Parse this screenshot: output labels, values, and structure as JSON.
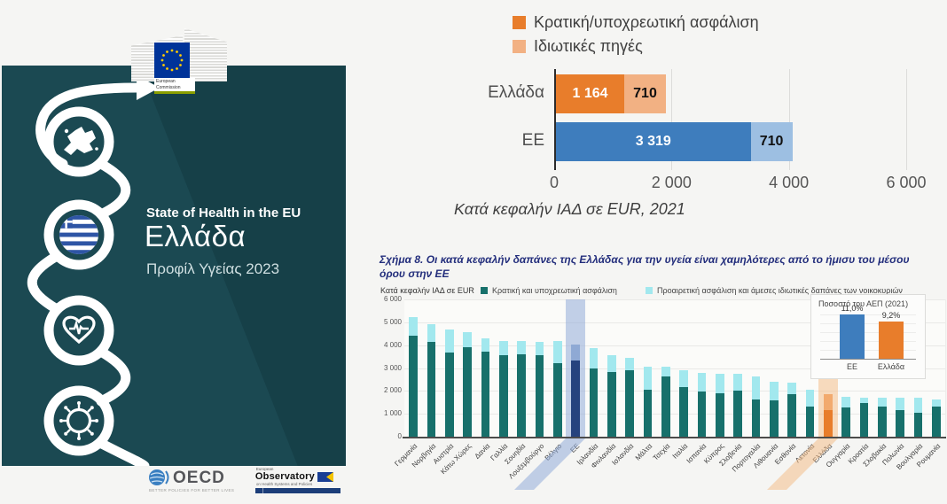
{
  "page": {
    "background": "#f5f5f3"
  },
  "cover": {
    "ec_logo": {
      "line1": "European",
      "line2": "Commission"
    },
    "series_title": "State of Health in the EU",
    "country": "Ελλάδα",
    "edition": "Προφίλ Υγείας 2023",
    "icon_names": [
      "europe-map-icon",
      "greek-flag-icon",
      "heart-pulse-icon",
      "virus-icon"
    ],
    "colors": {
      "card_bg": "#1b4952",
      "artwork": "#ffffff"
    },
    "footer": {
      "oecd_name": "OECD",
      "oecd_tagline": "BETTER POLICIES FOR BETTER LIVES",
      "observatory_top": "European",
      "observatory_name": "Observatory",
      "observatory_sub": "on Health Systems and Policies"
    }
  },
  "chart_data": [
    {
      "id": "headline-per-capita",
      "type": "bar",
      "orientation": "horizontal",
      "stacked": true,
      "legend": [
        {
          "label": "Κρατική/υποχρεωτική ασφάλιση",
          "color": "#e87d2b"
        },
        {
          "label": "Ιδιωτικές πηγές",
          "color": "#f2b183"
        }
      ],
      "categories": [
        "Ελλάδα",
        "ΕΕ"
      ],
      "series": [
        {
          "name": "Κρατική/υποχρεωτική ασφάλιση",
          "values": [
            1164,
            3319
          ]
        },
        {
          "name": "Ιδιωτικές πηγές",
          "values": [
            710,
            710
          ]
        }
      ],
      "bar_labels": [
        [
          "1 164",
          "710"
        ],
        [
          "3 319",
          "710"
        ]
      ],
      "bar_colors": [
        [
          "#e87d2b",
          "#f2b183"
        ],
        [
          "#3e7dbd",
          "#9dbfe2"
        ]
      ],
      "xlim": [
        0,
        6000
      ],
      "x_ticks": [
        {
          "value": 0,
          "label": "0"
        },
        {
          "value": 2000,
          "label": "2 000"
        },
        {
          "value": 4000,
          "label": "4 000"
        },
        {
          "value": 6000,
          "label": "6 000"
        }
      ],
      "caption": "Κατά κεφαλήν ΙΑΔ σε EUR, 2021",
      "grid": "vertical"
    },
    {
      "id": "figure-8",
      "type": "bar",
      "stacked": true,
      "title": "Σχήμα 8. Οι κατά κεφαλήν δαπάνες της Ελλάδας για την υγεία είναι χαμηλότερες από το ήμισυ του μέσου όρου στην ΕΕ",
      "unit_label": "Κατά κεφαλήν ΙΑΔ σε EUR",
      "legend": [
        {
          "label": "Κρατική και υποχρεωτική ασφάλιση",
          "color": "#17706b"
        },
        {
          "label": "Προαιρετική ασφάλιση και άμεσες ιδιωτικές δαπάνες των νοικοκυριών",
          "color": "#a2e8ee"
        }
      ],
      "ylim": [
        0,
        6000
      ],
      "y_ticks": [
        "0",
        "1 000",
        "2 000",
        "3 000",
        "4 000",
        "5 000",
        "6 000"
      ],
      "grid": "horizontal",
      "categories": [
        "Γερμανία",
        "Νορβηγία",
        "Αυστρία",
        "Κάτω Χώρες",
        "Δανία",
        "Γαλλία",
        "Σουηδία",
        "Λουξεμβούργο",
        "Βέλγιο",
        "ΕΕ",
        "Ιρλανδία",
        "Φινλανδία",
        "Ισλανδία",
        "Μάλτα",
        "Τσεχία",
        "Ιταλία",
        "Ισπανία",
        "Κύπρος",
        "Σλοβενία",
        "Πορτογαλία",
        "Λιθουανία",
        "Εσθονία",
        "Λετονία",
        "Ελλάδα",
        "Ουγγαρία",
        "Κροατία",
        "Σλοβακία",
        "Πολωνία",
        "Βουλγαρία",
        "Ρουμανία"
      ],
      "series": [
        {
          "name": "Κρατική και υποχρεωτική ασφάλιση",
          "values": [
            4430,
            4150,
            3660,
            3910,
            3710,
            3560,
            3610,
            3580,
            3220,
            3319,
            2990,
            2830,
            2900,
            2050,
            2650,
            2180,
            1980,
            1900,
            2010,
            1640,
            1590,
            1850,
            1300,
            1164,
            1270,
            1460,
            1330,
            1170,
            1040,
            1300
          ]
        },
        {
          "name": "Προαιρετική ασφάλιση και άμεσες ιδιωτικές δαπάνες των νοικοκυριών",
          "values": [
            790,
            780,
            1010,
            670,
            580,
            620,
            570,
            570,
            950,
            710,
            890,
            740,
            560,
            1000,
            420,
            730,
            820,
            860,
            730,
            990,
            810,
            530,
            760,
            710,
            480,
            240,
            390,
            530,
            650,
            340
          ]
        }
      ],
      "highlights": [
        {
          "category": "ΕΕ",
          "band_color": "rgba(146,171,216,0.55)",
          "bar_colors": [
            "#26437e",
            "#8fa9d4"
          ]
        },
        {
          "category": "Ελλάδα",
          "band_color": "rgba(243,185,130,0.50)",
          "bar_colors": [
            "#e87d2b",
            "#f2aa6e"
          ]
        }
      ],
      "inset": {
        "title": "Ποσοστό του ΑΕΠ (2021)",
        "ylim": [
          0,
          12
        ],
        "bars": [
          {
            "label": "ΕΕ",
            "value": 11.0,
            "value_label": "11,0%",
            "color": "#3e7dbd"
          },
          {
            "label": "Ελλάδα",
            "value": 9.2,
            "value_label": "9,2%",
            "color": "#e87d2b"
          }
        ]
      }
    }
  ]
}
